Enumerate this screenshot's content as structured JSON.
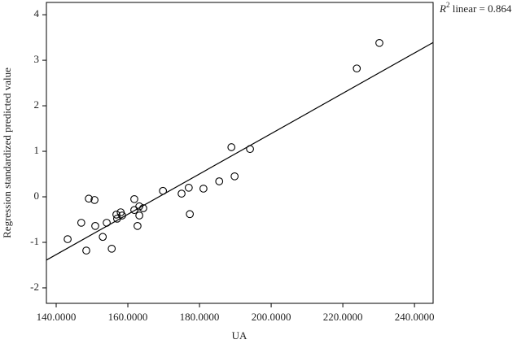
{
  "chart_data": {
    "type": "scatter",
    "x_label": "UA",
    "y_label": "Regression standardized predicted value",
    "annotation": {
      "base": "R",
      "superscript": "2",
      "rest": " linear = 0.864"
    },
    "x": [
      143.2,
      147.0,
      148.4,
      149.1,
      150.7,
      150.9,
      153.0,
      154.1,
      155.5,
      156.8,
      157.0,
      158.0,
      158.4,
      161.8,
      161.8,
      162.7,
      163.2,
      163.2,
      164.3,
      169.8,
      175.0,
      177.0,
      177.3,
      181.1,
      185.5,
      188.9,
      189.8,
      194.1,
      223.9,
      230.2
    ],
    "values": [
      -0.93,
      -0.57,
      -1.18,
      -0.04,
      -0.07,
      -0.64,
      -0.88,
      -0.57,
      -1.14,
      -0.39,
      -0.48,
      -0.34,
      -0.41,
      -0.05,
      -0.29,
      -0.64,
      -0.21,
      -0.41,
      -0.25,
      0.13,
      0.07,
      0.2,
      -0.38,
      0.18,
      0.34,
      1.09,
      0.45,
      1.05,
      2.82,
      3.38
    ],
    "color": "#000000",
    "fit_line": {
      "x": [
        137.27,
        245.2
      ],
      "y": [
        -1.39,
        3.39
      ],
      "color": "#000000"
    },
    "xlim": [
      137.27,
      245.2
    ],
    "ylim": [
      -2.34,
      4.27
    ],
    "xticks": [
      {
        "value": 140,
        "label": "140.0000"
      },
      {
        "value": 160,
        "label": "160.0000"
      },
      {
        "value": 180,
        "label": "180.0000"
      },
      {
        "value": 200,
        "label": "200.0000"
      },
      {
        "value": 220,
        "label": "220.0000"
      },
      {
        "value": 240,
        "label": "240.0000"
      }
    ],
    "yticks": [
      -2,
      -1,
      0,
      1,
      2,
      3,
      4
    ]
  }
}
